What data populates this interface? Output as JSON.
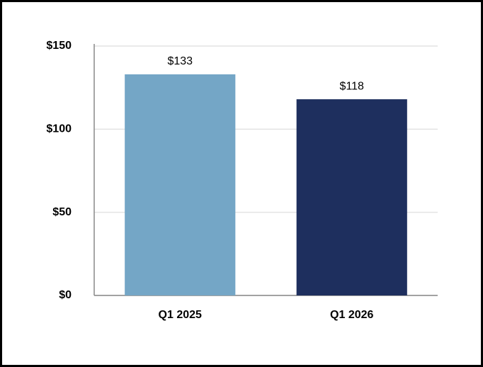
{
  "chart_data": {
    "type": "bar",
    "categories": [
      "Q1 2025",
      "Q1 2026"
    ],
    "values": [
      133,
      118
    ],
    "value_labels": [
      "$133",
      "$118"
    ],
    "colors": [
      "#74a6c6",
      "#1e2f5e"
    ],
    "ylim": [
      0,
      150
    ],
    "yticks": [
      {
        "value": 0,
        "label": "$0"
      },
      {
        "value": 50,
        "label": "$50"
      },
      {
        "value": 100,
        "label": "$100"
      },
      {
        "value": 150,
        "label": "$150"
      }
    ],
    "grid": true
  }
}
